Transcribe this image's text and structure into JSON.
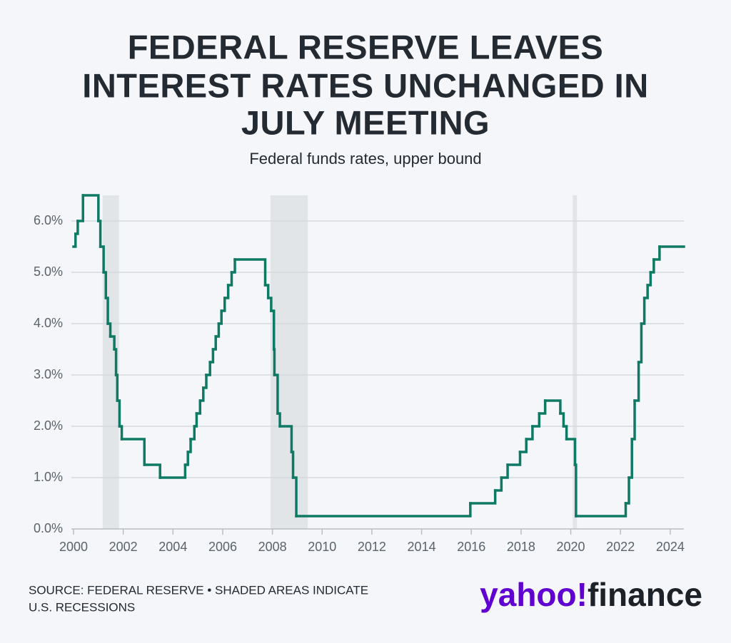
{
  "chart_data": {
    "type": "step",
    "title": [
      "FEDERAL RESERVE LEAVES",
      "INTEREST RATES UNCHANGED IN",
      "JULY MEETING"
    ],
    "subtitle": "Federal funds rates, upper bound",
    "source": [
      "SOURCE: FEDERAL RESERVE • SHADED AREAS INDICATE",
      "U.S. RECESSIONS"
    ],
    "logo": [
      "yahoo!",
      "finance"
    ],
    "color": "#0e7a64",
    "recession_color": "#e2e5e8",
    "grid": true,
    "xlim": [
      2000,
      2024.55
    ],
    "ylim": [
      0,
      6.5
    ],
    "xticks": [
      2000,
      2002,
      2004,
      2006,
      2008,
      2010,
      2012,
      2014,
      2016,
      2018,
      2020,
      2022,
      2024
    ],
    "yticks": [
      {
        "value": 0,
        "label": "0.0%"
      },
      {
        "value": 1,
        "label": "1.0%"
      },
      {
        "value": 2,
        "label": "2.0%"
      },
      {
        "value": 3,
        "label": "3.0%"
      },
      {
        "value": 4,
        "label": "4.0%"
      },
      {
        "value": 5,
        "label": "5.0%"
      },
      {
        "value": 6,
        "label": "6.0%"
      }
    ],
    "recessions": [
      [
        2001.17,
        2001.83
      ],
      [
        2007.92,
        2009.42
      ],
      [
        2020.08,
        2020.25
      ]
    ],
    "x": [
      2000.0,
      2000.08,
      2000.17,
      2000.38,
      2001.0,
      2001.08,
      2001.21,
      2001.3,
      2001.38,
      2001.48,
      2001.64,
      2001.71,
      2001.76,
      2001.85,
      2001.94,
      2002.85,
      2003.48,
      2004.49,
      2004.6,
      2004.71,
      2004.86,
      2004.95,
      2005.09,
      2005.22,
      2005.34,
      2005.49,
      2005.61,
      2005.72,
      2005.84,
      2005.95,
      2006.08,
      2006.22,
      2006.36,
      2006.49,
      2007.71,
      2007.83,
      2007.95,
      2008.06,
      2008.08,
      2008.21,
      2008.3,
      2008.77,
      2008.83,
      2008.96,
      2015.96,
      2016.96,
      2017.21,
      2017.46,
      2017.96,
      2018.21,
      2018.46,
      2018.73,
      2018.97,
      2019.58,
      2019.71,
      2019.83,
      2020.17,
      2020.21,
      2022.21,
      2022.34,
      2022.46,
      2022.57,
      2022.73,
      2022.84,
      2022.96,
      2023.09,
      2023.21,
      2023.34,
      2023.57
    ],
    "values": [
      5.5,
      5.75,
      6.0,
      6.5,
      6.0,
      5.5,
      5.0,
      4.5,
      4.0,
      3.75,
      3.5,
      3.0,
      2.5,
      2.0,
      1.75,
      1.25,
      1.0,
      1.25,
      1.5,
      1.75,
      2.0,
      2.25,
      2.5,
      2.75,
      3.0,
      3.25,
      3.5,
      3.75,
      4.0,
      4.25,
      4.5,
      4.75,
      5.0,
      5.25,
      4.75,
      4.5,
      4.25,
      3.5,
      3.0,
      2.25,
      2.0,
      1.5,
      1.0,
      0.25,
      0.5,
      0.75,
      1.0,
      1.25,
      1.5,
      1.75,
      2.0,
      2.25,
      2.5,
      2.25,
      2.0,
      1.75,
      1.25,
      0.25,
      0.5,
      1.0,
      1.75,
      2.5,
      3.25,
      4.0,
      4.5,
      4.75,
      5.0,
      5.25,
      5.5
    ]
  }
}
